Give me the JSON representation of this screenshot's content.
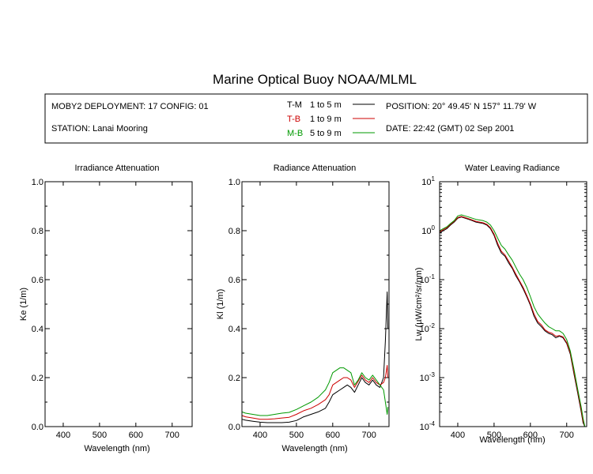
{
  "page_title": "Marine Optical Buoy NOAA/MLML",
  "info": {
    "deployment": "MOBY2 DEPLOYMENT: 17 CONFIG: 01",
    "station": "STATION: Lanai Mooring",
    "position": "POSITION: 20° 49.45' N   157° 11.79' W",
    "date": "DATE: 22:42 (GMT) 02 Sep 2001",
    "legend": [
      {
        "code": "T-M",
        "range": "1 to 5  m",
        "color": "#000000"
      },
      {
        "code": "T-B",
        "range": "1 to 9  m",
        "color": "#cc0000"
      },
      {
        "code": "M-B",
        "range": "5 to 9  m",
        "color": "#009900"
      }
    ]
  },
  "chart_data": [
    {
      "type": "line",
      "title": "Irradiance Attenuation",
      "xlabel": "Wavelength (nm)",
      "ylabel": "Ke  (1/m)",
      "xlim": [
        350,
        755
      ],
      "ylim": [
        0,
        1
      ],
      "xticks": [
        400,
        500,
        600,
        700
      ],
      "yticks": [
        "0.0",
        "0.2",
        "0.4",
        "0.6",
        "0.8",
        "1.0"
      ],
      "series": []
    },
    {
      "type": "line",
      "title": "Radiance Attenuation",
      "xlabel": "Wavelength (nm)",
      "ylabel": "Kl  (1/m)",
      "xlim": [
        350,
        755
      ],
      "ylim": [
        0,
        1
      ],
      "xticks": [
        400,
        500,
        600,
        700
      ],
      "yticks": [
        "0.0",
        "0.2",
        "0.4",
        "0.6",
        "0.8",
        "1.0"
      ],
      "series": [
        {
          "name": "T-M",
          "color": "#000000",
          "x": [
            350,
            360,
            380,
            400,
            420,
            440,
            460,
            480,
            500,
            520,
            540,
            560,
            580,
            590,
            600,
            610,
            620,
            630,
            640,
            650,
            660,
            670,
            680,
            690,
            700,
            710,
            720,
            730,
            740,
            745,
            750,
            752
          ],
          "y": [
            0.03,
            0.026,
            0.022,
            0.018,
            0.016,
            0.016,
            0.016,
            0.018,
            0.025,
            0.04,
            0.05,
            0.06,
            0.075,
            0.1,
            0.13,
            0.14,
            0.15,
            0.16,
            0.17,
            0.16,
            0.14,
            0.17,
            0.2,
            0.18,
            0.17,
            0.19,
            0.17,
            0.16,
            0.2,
            0.35,
            0.55,
            0.4
          ]
        },
        {
          "name": "T-B",
          "color": "#cc0000",
          "x": [
            350,
            360,
            380,
            400,
            420,
            440,
            460,
            480,
            500,
            520,
            540,
            560,
            580,
            590,
            600,
            610,
            620,
            630,
            640,
            650,
            660,
            670,
            680,
            690,
            700,
            710,
            720,
            730,
            740,
            745,
            750,
            752
          ],
          "y": [
            0.045,
            0.04,
            0.035,
            0.03,
            0.03,
            0.032,
            0.035,
            0.038,
            0.05,
            0.065,
            0.075,
            0.09,
            0.11,
            0.13,
            0.17,
            0.18,
            0.19,
            0.2,
            0.2,
            0.19,
            0.16,
            0.185,
            0.21,
            0.19,
            0.18,
            0.2,
            0.18,
            0.17,
            0.18,
            0.2,
            0.25,
            0.2
          ]
        },
        {
          "name": "M-B",
          "color": "#009900",
          "x": [
            350,
            360,
            380,
            400,
            420,
            440,
            460,
            480,
            500,
            520,
            540,
            560,
            580,
            590,
            600,
            610,
            620,
            630,
            640,
            650,
            660,
            670,
            680,
            690,
            700,
            710,
            720,
            730,
            740,
            745,
            750,
            752
          ],
          "y": [
            0.06,
            0.055,
            0.05,
            0.045,
            0.045,
            0.05,
            0.055,
            0.058,
            0.07,
            0.085,
            0.1,
            0.12,
            0.15,
            0.18,
            0.22,
            0.23,
            0.24,
            0.24,
            0.23,
            0.22,
            0.17,
            0.19,
            0.22,
            0.2,
            0.19,
            0.21,
            0.19,
            0.17,
            0.15,
            0.1,
            0.05,
            0.08
          ]
        }
      ]
    },
    {
      "type": "line",
      "title": "Water Leaving Radiance",
      "xlabel": "Wavelength (nm)",
      "ylabel": "Lw  (µW/cm²/sr/nm)",
      "yscale": "log",
      "xlim": [
        350,
        755
      ],
      "ylim": [
        0.0001,
        10
      ],
      "xticks": [
        400,
        500,
        600,
        700
      ],
      "ytick_bases": [
        "10",
        "10",
        "10",
        "10",
        "10",
        "10"
      ],
      "ytick_exps": [
        "-4",
        "-3",
        "-2",
        "-1",
        "0",
        "1"
      ],
      "series": [
        {
          "name": "T-M",
          "color": "#000000",
          "x": [
            350,
            360,
            370,
            380,
            390,
            400,
            410,
            420,
            430,
            440,
            450,
            460,
            470,
            480,
            490,
            500,
            510,
            520,
            530,
            540,
            550,
            560,
            570,
            580,
            590,
            600,
            610,
            620,
            630,
            640,
            650,
            660,
            670,
            680,
            690,
            700,
            710,
            720,
            730,
            740,
            745,
            750
          ],
          "y": [
            0.9,
            1.0,
            1.1,
            1.3,
            1.5,
            1.8,
            1.9,
            1.8,
            1.7,
            1.6,
            1.5,
            1.45,
            1.4,
            1.3,
            1.1,
            0.8,
            0.5,
            0.35,
            0.3,
            0.22,
            0.17,
            0.12,
            0.09,
            0.065,
            0.045,
            0.03,
            0.018,
            0.013,
            0.011,
            0.009,
            0.008,
            0.0075,
            0.0065,
            0.007,
            0.0065,
            0.005,
            0.003,
            0.0012,
            0.0005,
            0.0002,
            0.00012,
            0.0001
          ]
        },
        {
          "name": "T-B",
          "color": "#cc0000",
          "x": [
            350,
            360,
            370,
            380,
            390,
            400,
            410,
            420,
            430,
            440,
            450,
            460,
            470,
            480,
            490,
            500,
            510,
            520,
            530,
            540,
            550,
            560,
            570,
            580,
            590,
            600,
            610,
            620,
            630,
            640,
            650,
            660,
            670,
            680,
            690,
            700,
            710,
            720,
            730,
            740,
            745,
            750
          ],
          "y": [
            0.95,
            1.05,
            1.15,
            1.35,
            1.55,
            1.85,
            1.95,
            1.85,
            1.75,
            1.65,
            1.55,
            1.5,
            1.45,
            1.35,
            1.15,
            0.85,
            0.55,
            0.38,
            0.32,
            0.24,
            0.18,
            0.13,
            0.095,
            0.07,
            0.048,
            0.032,
            0.02,
            0.014,
            0.012,
            0.0095,
            0.0085,
            0.008,
            0.007,
            0.0072,
            0.0068,
            0.0052,
            0.0032,
            0.0013,
            0.00055,
            0.00022,
            0.00013,
            0.0001
          ]
        },
        {
          "name": "M-B",
          "color": "#009900",
          "x": [
            350,
            360,
            370,
            380,
            390,
            400,
            410,
            420,
            430,
            440,
            450,
            460,
            470,
            480,
            490,
            500,
            510,
            520,
            530,
            540,
            550,
            560,
            570,
            580,
            590,
            600,
            610,
            620,
            630,
            640,
            650,
            660,
            670,
            680,
            690,
            700,
            710,
            720,
            730,
            740,
            745,
            750
          ],
          "y": [
            1.0,
            1.1,
            1.2,
            1.4,
            1.6,
            2.0,
            2.1,
            2.0,
            1.9,
            1.8,
            1.7,
            1.65,
            1.6,
            1.5,
            1.3,
            1.0,
            0.7,
            0.5,
            0.42,
            0.32,
            0.25,
            0.18,
            0.13,
            0.1,
            0.07,
            0.045,
            0.028,
            0.02,
            0.016,
            0.013,
            0.011,
            0.01,
            0.009,
            0.009,
            0.008,
            0.006,
            0.0035,
            0.0015,
            0.0006,
            0.00025,
            0.00015,
            0.0001
          ]
        }
      ]
    }
  ]
}
